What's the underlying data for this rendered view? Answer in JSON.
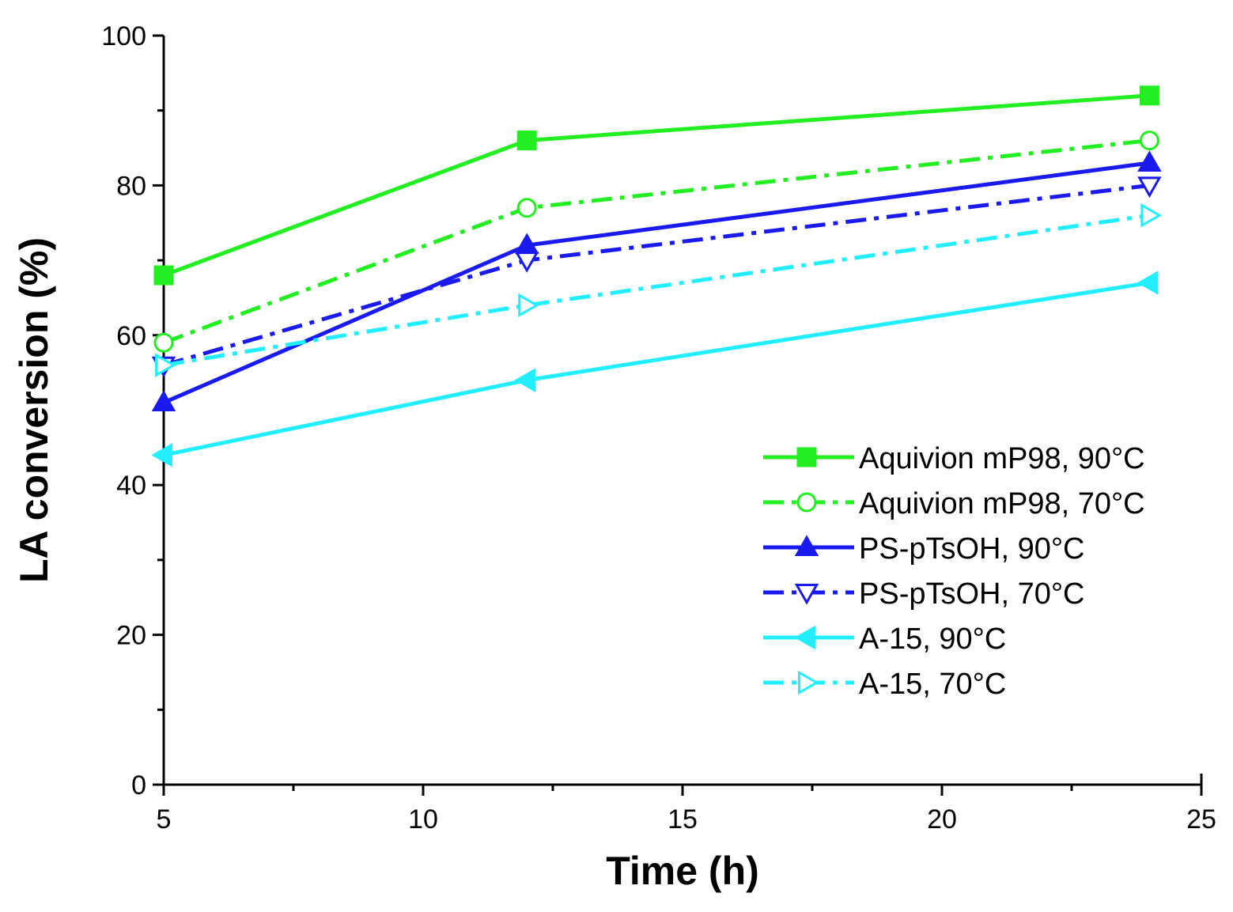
{
  "chart_data": {
    "type": "line",
    "xlabel": "Time (h)",
    "ylabel": "LA conversion (%)",
    "xlim": [
      5,
      25
    ],
    "ylim": [
      0,
      100
    ],
    "x_ticks": [
      "5",
      "10",
      "15",
      "20",
      "25"
    ],
    "y_ticks": [
      "0",
      "20",
      "40",
      "60",
      "80",
      "100"
    ],
    "x": [
      5,
      12,
      24
    ],
    "grid": false,
    "legend_position": "center-right",
    "series": [
      {
        "name": "Aquivion mP98, 90°C",
        "values": [
          68,
          86,
          92
        ],
        "color": "#22ee22",
        "line": "solid",
        "marker": "square-filled"
      },
      {
        "name": "Aquivion mP98, 70°C",
        "values": [
          59,
          77,
          86
        ],
        "color": "#22ee22",
        "line": "dashdot",
        "marker": "circle-open"
      },
      {
        "name": "PS-pTsOH, 90°C",
        "values": [
          51,
          72,
          83
        ],
        "color": "#1a1aee",
        "line": "solid",
        "marker": "triangle-up-filled"
      },
      {
        "name": "PS-pTsOH, 70°C",
        "values": [
          56,
          70,
          80
        ],
        "color": "#1a1aee",
        "line": "dashdot",
        "marker": "triangle-down-open"
      },
      {
        "name": "A-15, 90°C",
        "values": [
          44,
          54,
          67
        ],
        "color": "#22eeff",
        "line": "solid",
        "marker": "triangle-left-filled"
      },
      {
        "name": "A-15, 70°C",
        "values": [
          56,
          64,
          76
        ],
        "color": "#22eeff",
        "line": "dashdot",
        "marker": "triangle-right-open"
      }
    ]
  }
}
